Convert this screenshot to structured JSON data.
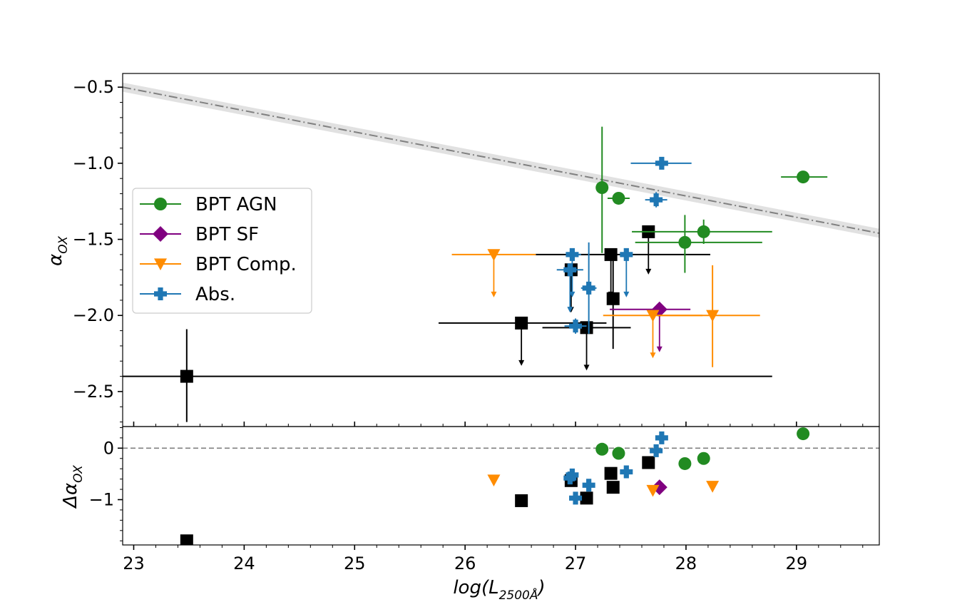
{
  "chart_data": {
    "type": "scatter",
    "xlabel": {
      "pre": "log(L",
      "sub": "2500Å",
      "post": ")"
    },
    "xlim": [
      22.9,
      29.75
    ],
    "x_ticks": [
      23,
      24,
      25,
      26,
      27,
      28,
      29
    ],
    "x_tick_labels": [
      "23",
      "24",
      "25",
      "26",
      "27",
      "28",
      "29"
    ],
    "top_panel": {
      "ylabel": {
        "pre": "α",
        "sub": "OX"
      },
      "ylim": [
        -2.73,
        -0.41
      ],
      "y_ticks": [
        -0.5,
        -1.0,
        -1.5,
        -2.0,
        -2.5
      ],
      "y_tick_labels": [
        "−0.5",
        "−1.0",
        "−1.5",
        "−2.0",
        "−2.5"
      ],
      "relation": {
        "start": [
          22.9,
          -0.5
        ],
        "end": [
          29.75,
          -1.46
        ],
        "band": 0.03,
        "color": "#808080"
      }
    },
    "bottom_panel": {
      "ylabel": {
        "pre": "Δα",
        "sub": "OX"
      },
      "ylim": [
        -1.88,
        0.42
      ],
      "y_ticks": [
        0,
        -1
      ],
      "y_tick_labels": [
        "0",
        "−1"
      ],
      "zero_line": 0
    },
    "legend": {
      "position": "center-left",
      "entries": [
        {
          "label": "BPT AGN",
          "marker": "circle",
          "color": "#228b22"
        },
        {
          "label": "BPT SF",
          "marker": "diamond",
          "color": "#800080"
        },
        {
          "label": "BPT Comp.",
          "marker": "triangle-down",
          "color": "#ff8c00"
        },
        {
          "label": "Abs.",
          "marker": "plus",
          "color": "#1f77b4"
        }
      ]
    },
    "series": [
      {
        "name": "BPT AGN",
        "marker": "circle",
        "color": "#228b22",
        "points": [
          {
            "x": 27.24,
            "y": -1.16,
            "xerr": [
              0.05,
              0.05
            ],
            "yerr": [
              0.43,
              0.4
            ],
            "upper": false,
            "dy": -0.02
          },
          {
            "x": 27.39,
            "y": -1.23,
            "xerr": [
              0.1,
              0.1
            ],
            "yerr": [
              0.03,
              0.03
            ],
            "upper": false,
            "dy": -0.1
          },
          {
            "x": 27.99,
            "y": -1.52,
            "xerr": [
              0.45,
              0.7
            ],
            "yerr": [
              0.2,
              0.18
            ],
            "upper": false,
            "dy": -0.3
          },
          {
            "x": 28.16,
            "y": -1.45,
            "xerr": [
              0.65,
              0.62
            ],
            "yerr": [
              0.08,
              0.08
            ],
            "upper": false,
            "dy": -0.2
          },
          {
            "x": 29.06,
            "y": -1.09,
            "xerr": [
              0.2,
              0.22
            ],
            "yerr": [
              0.04,
              0.04
            ],
            "upper": false,
            "dy": 0.28
          }
        ]
      },
      {
        "name": "BPT SF",
        "marker": "diamond",
        "color": "#800080",
        "points": [
          {
            "x": 27.76,
            "y": -1.96,
            "xerr": [
              0.45,
              0.28
            ],
            "yerr": [
              0,
              0
            ],
            "upper": true,
            "dy": -0.76
          }
        ]
      },
      {
        "name": "BPT Comp.",
        "marker": "triangle-down",
        "color": "#ff8c00",
        "points": [
          {
            "x": 26.26,
            "y": -1.6,
            "xerr": [
              0.38,
              0.38
            ],
            "yerr": [
              0,
              0
            ],
            "upper": true,
            "dy": -0.62
          },
          {
            "x": 27.7,
            "y": -2.0,
            "xerr": [
              0.45,
              0.45
            ],
            "yerr": [
              0,
              0
            ],
            "upper": true,
            "dy": -0.82
          },
          {
            "x": 28.24,
            "y": -2.0,
            "xerr": [
              0.5,
              0.43
            ],
            "yerr": [
              0.34,
              0.33
            ],
            "upper": false,
            "dy": -0.74
          }
        ]
      },
      {
        "name": "Abs.",
        "marker": "plus",
        "color": "#1f77b4",
        "points": [
          {
            "x": 26.97,
            "y": -1.6,
            "xerr": [
              0.05,
              0.08
            ],
            "yerr": [
              0,
              0
            ],
            "upper": true,
            "dy": -0.52
          },
          {
            "x": 26.95,
            "y": -1.7,
            "xerr": [
              0.12,
              0.12
            ],
            "yerr": [
              0,
              0
            ],
            "upper": true,
            "dy": -0.58
          },
          {
            "x": 27.0,
            "y": -2.07,
            "xerr": [
              0.1,
              0.1
            ],
            "yerr": [
              0.05,
              0.05
            ],
            "upper": false,
            "dy": -0.97
          },
          {
            "x": 27.12,
            "y": -1.82,
            "xerr": [
              0.07,
              0.07
            ],
            "yerr": [
              0.3,
              0.3
            ],
            "upper": false,
            "dy": -0.72
          },
          {
            "x": 27.46,
            "y": -1.6,
            "xerr": [
              0.05,
              0.05
            ],
            "yerr": [
              0,
              0
            ],
            "upper": true,
            "dy": -0.46
          },
          {
            "x": 27.73,
            "y": -1.24,
            "xerr": [
              0.1,
              0.1
            ],
            "yerr": [
              0.05,
              0.05
            ],
            "upper": false,
            "dy": -0.05
          },
          {
            "x": 27.78,
            "y": -1.0,
            "xerr": [
              0.28,
              0.27
            ],
            "yerr": [
              0.03,
              0.03
            ],
            "upper": false,
            "dy": 0.2
          }
        ]
      },
      {
        "name": "Black squares",
        "marker": "square",
        "color": "#000000",
        "points": [
          {
            "x": 23.48,
            "y": -2.4,
            "xerr": [
              0.7,
              5.3
            ],
            "yerr": [
              0.3,
              0.31
            ],
            "upper": false,
            "dy": -1.8
          },
          {
            "x": 26.51,
            "y": -2.05,
            "xerr": [
              0.75,
              0.77
            ],
            "yerr": [
              0,
              0
            ],
            "upper": true,
            "dy": -1.02
          },
          {
            "x": 26.96,
            "y": -1.7,
            "xerr": [
              0,
              0
            ],
            "yerr": [
              0,
              0
            ],
            "upper": true,
            "dy": -0.63
          },
          {
            "x": 27.1,
            "y": -2.08,
            "xerr": [
              0.4,
              0.4
            ],
            "yerr": [
              0,
              0
            ],
            "upper": true,
            "dy": -0.97
          },
          {
            "x": 27.32,
            "y": -1.6,
            "xerr": [
              0.68,
              0.9
            ],
            "yerr": [
              0,
              0
            ],
            "upper": true,
            "dy": -0.49
          },
          {
            "x": 27.34,
            "y": -1.89,
            "xerr": [
              0,
              0
            ],
            "yerr": [
              0.33,
              0.33
            ],
            "upper": false,
            "dy": -0.76
          },
          {
            "x": 27.66,
            "y": -1.45,
            "xerr": [
              0,
              0
            ],
            "yerr": [
              0,
              0
            ],
            "upper": true,
            "dy": -0.28
          }
        ]
      }
    ]
  }
}
